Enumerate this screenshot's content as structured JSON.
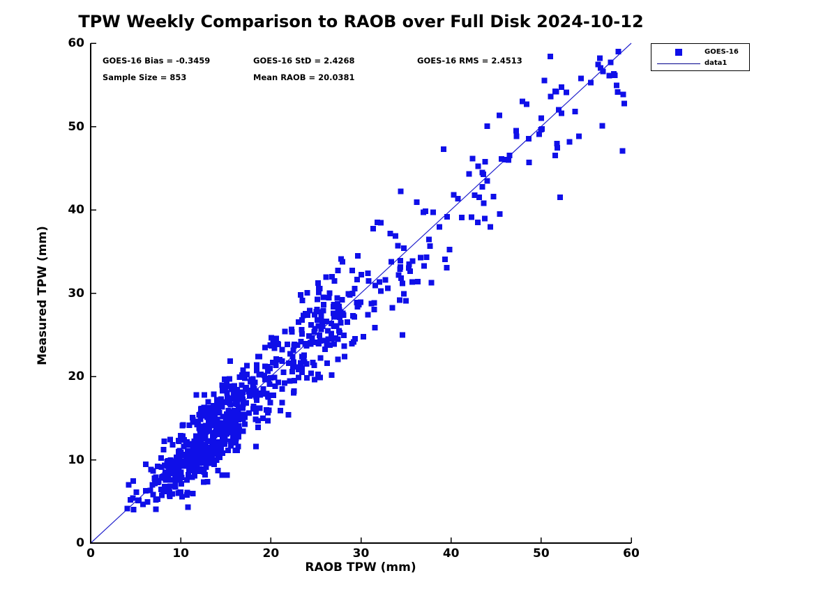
{
  "figure": {
    "background": "#ffffff"
  },
  "chart_data": {
    "type": "scatter",
    "title": "TPW Weekly Comparison to RAOB over Full Disk 2024-10-12",
    "xlabel": "RAOB TPW (mm)",
    "ylabel": "Measured TPW (mm)",
    "xlim": [
      0,
      60
    ],
    "ylim": [
      0,
      60
    ],
    "x_ticks": [
      0,
      10,
      20,
      30,
      40,
      50,
      60
    ],
    "y_ticks": [
      0,
      10,
      20,
      30,
      40,
      50,
      60
    ],
    "grid": false,
    "axis_color": "#000000",
    "annotations": [
      {
        "id": "bias",
        "text": "GOES-16 Bias = -0.3459"
      },
      {
        "id": "std",
        "text": "GOES-16 StD = 2.4268"
      },
      {
        "id": "rms",
        "text": "GOES-16 RMS = 2.4513"
      },
      {
        "id": "sample",
        "text": "Sample Size = 853"
      },
      {
        "id": "mean",
        "text": "Mean RAOB = 20.0381"
      }
    ],
    "stats": {
      "bias": -0.3459,
      "std": 2.4268,
      "rms": 2.4513,
      "sample_size": 853,
      "mean_raob": 20.0381
    },
    "legend": {
      "position": "top-right",
      "entries": [
        {
          "label": "GOES-16",
          "swatch": "square-marker",
          "color": "#0f0fe8"
        },
        {
          "label": "data1",
          "swatch": "line",
          "color": "#00008b"
        }
      ]
    },
    "reference_line": {
      "name": "data1",
      "x1": 0,
      "y1": 0,
      "x2": 60,
      "y2": 60,
      "color": "#2222cc",
      "width": 1.2
    },
    "series": [
      {
        "name": "GOES-16",
        "marker": "filled-square",
        "marker_size_px": 8,
        "color": "#0f0fe8",
        "count": 853,
        "x_range": [
          3.9,
          59.5
        ],
        "model": "y = x - 0.3459 + N(0, 2.4268)",
        "outlier_points": [
          [
            34.6,
            25.0
          ],
          [
            31.8,
            38.5
          ],
          [
            23.3,
            29.8
          ],
          [
            10.8,
            4.3
          ],
          [
            52.1,
            41.5
          ],
          [
            51.0,
            58.4
          ]
        ],
        "generator": {
          "seed": 20241012,
          "x_components": [
            {
              "weight": 0.655,
              "dist": "normal",
              "mean": 13.0,
              "sd": 3.4,
              "min": 4.0,
              "max": 22.0
            },
            {
              "weight": 0.19,
              "dist": "normal",
              "mean": 24.5,
              "sd": 3.2,
              "min": 18.0,
              "max": 32.0
            },
            {
              "weight": 0.08,
              "dist": "normal",
              "mean": 34.5,
              "sd": 3.0,
              "min": 28.0,
              "max": 41.0
            },
            {
              "weight": 0.075,
              "dist": "uniform",
              "min": 41.0,
              "max": 59.5
            }
          ],
          "y_bias": -0.3459,
          "y_noise_base": 1.6,
          "y_noise_slope": 0.05,
          "y_min": 3.9,
          "y_max": 59.2
        }
      }
    ]
  }
}
